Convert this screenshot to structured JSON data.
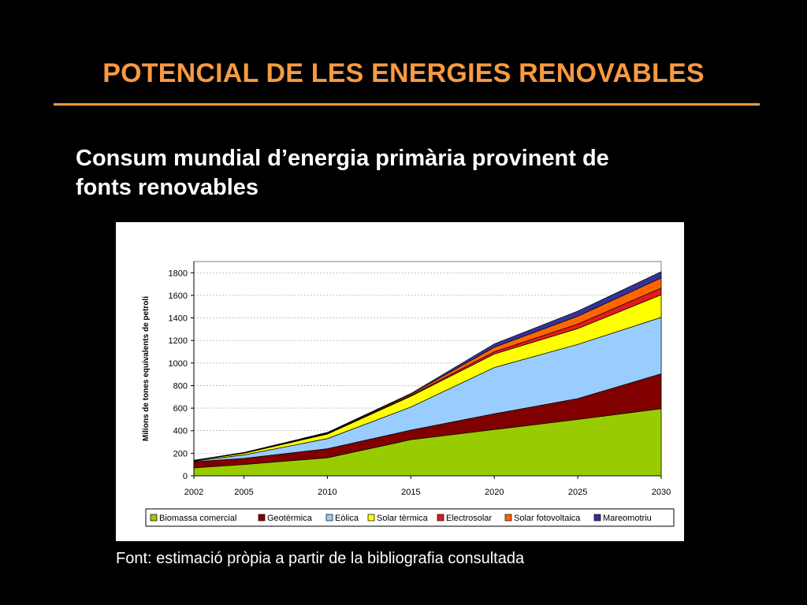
{
  "slide": {
    "title": "POTENCIAL DE LES ENERGIES RENOVABLES",
    "subtitle_line1": "Consum mundial d’energia primària provinent de",
    "subtitle_line2": "fonts renovables",
    "source": "Font: estimació pròpia a partir de la bibliografia consultada",
    "accent_color": "#f79a42"
  },
  "chart_data": {
    "type": "area",
    "stacked": true,
    "title": "",
    "xlabel": "",
    "ylabel": "Milions de tones equivalents de petroli",
    "x": [
      2002,
      2005,
      2010,
      2015,
      2020,
      2025,
      2030
    ],
    "ylim": [
      0,
      1900
    ],
    "yticks": [
      0,
      200,
      400,
      600,
      800,
      1000,
      1200,
      1400,
      1600,
      1800
    ],
    "grid": "horizontal",
    "legend_position": "bottom",
    "series": [
      {
        "name": "Biomassa comercial",
        "color": "#99cc00",
        "values": [
          70,
          100,
          160,
          320,
          410,
          500,
          595
        ]
      },
      {
        "name": "Geotèrmica",
        "color": "#800000",
        "values": [
          55,
          55,
          80,
          85,
          140,
          185,
          310
        ]
      },
      {
        "name": "Eòlica",
        "color": "#99ccff",
        "values": [
          5,
          30,
          90,
          205,
          410,
          480,
          500
        ]
      },
      {
        "name": "Solar tèrmica",
        "color": "#ffff00",
        "values": [
          5,
          15,
          40,
          95,
          120,
          140,
          200
        ]
      },
      {
        "name": "Electrosolar",
        "color": "#e31a1c",
        "values": [
          1,
          2,
          5,
          8,
          20,
          40,
          60
        ]
      },
      {
        "name": "Solar fotovoltaica",
        "color": "#ff6600",
        "values": [
          1,
          2,
          5,
          10,
          40,
          70,
          90
        ]
      },
      {
        "name": "Mareomotriu",
        "color": "#333399",
        "values": [
          1,
          3,
          5,
          7,
          30,
          45,
          55
        ]
      }
    ]
  }
}
